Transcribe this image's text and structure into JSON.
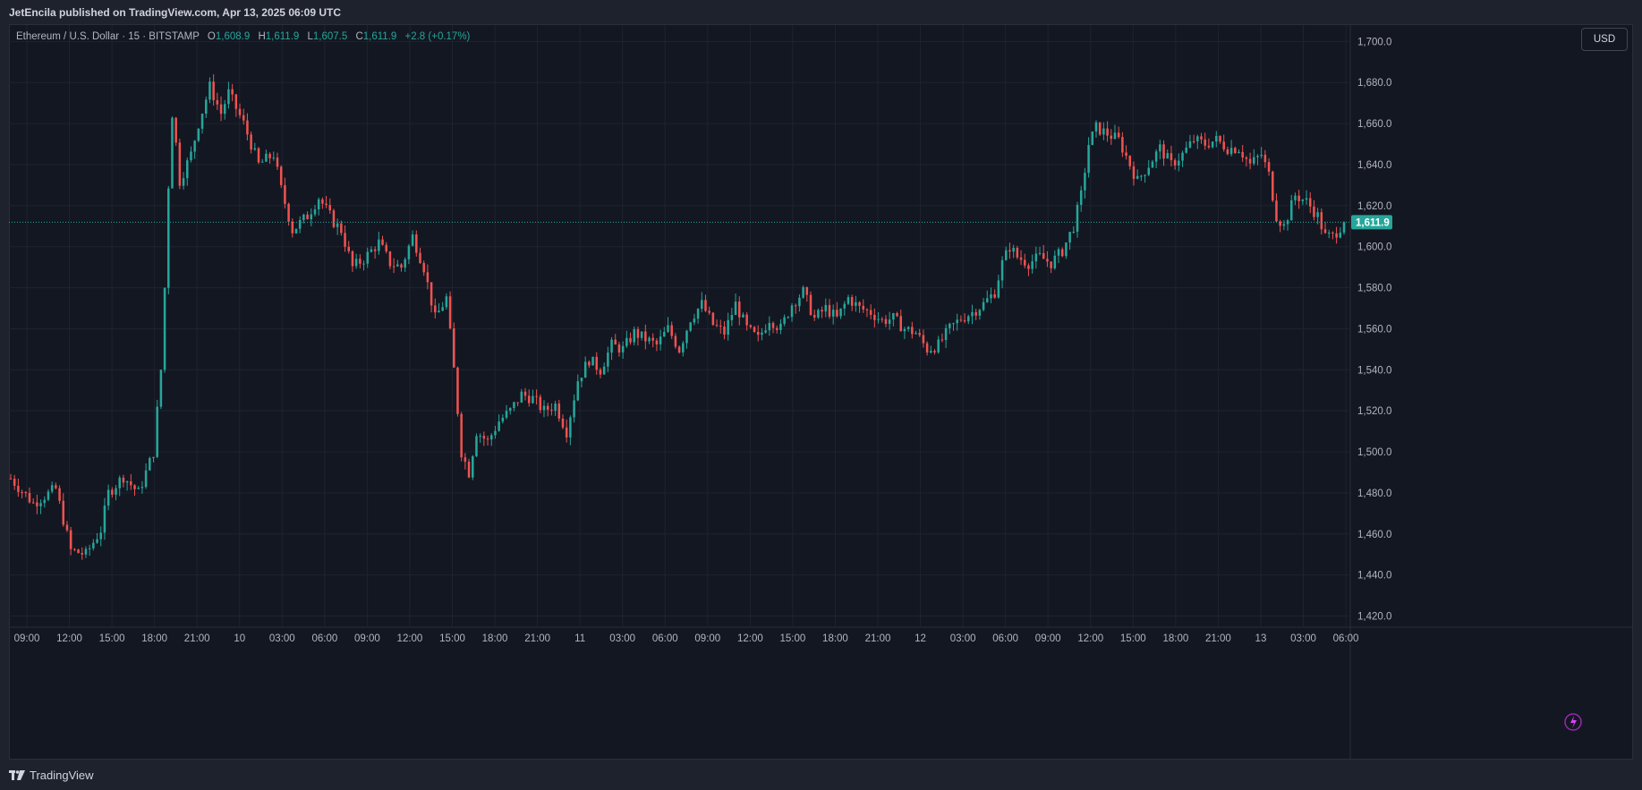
{
  "header": {
    "published_by": "JetEncila published on TradingView.com, Apr 13, 2025 06:09 UTC"
  },
  "legend": {
    "symbol": "Ethereum / U.S. Dollar · 15 · BITSTAMP",
    "o_label": "O",
    "o_value": "1,608.9",
    "h_label": "H",
    "h_value": "1,611.9",
    "l_label": "L",
    "l_value": "1,607.5",
    "c_label": "C",
    "c_value": "1,611.9",
    "change": "+2.8 (+0.17%)"
  },
  "currency_button": "USD",
  "footer": {
    "brand": "TradingView"
  },
  "colors": {
    "up": "#26a69a",
    "down": "#ef5350",
    "background": "#131722",
    "grid": "#1f2330",
    "price_line": "#26a69a"
  },
  "chart_data": {
    "type": "candlestick",
    "interval": "15",
    "ylim": [
      1415,
      1708
    ],
    "y_ticks": [
      1420,
      1440,
      1460,
      1480,
      1500,
      1520,
      1540,
      1560,
      1580,
      1600,
      1620,
      1640,
      1660,
      1680,
      1700
    ],
    "y_tick_labels": [
      "1,420.0",
      "1,440.0",
      "1,460.0",
      "1,480.0",
      "1,500.0",
      "1,520.0",
      "1,540.0",
      "1,560.0",
      "1,580.0",
      "1,600.0",
      "1,620.0",
      "1,640.0",
      "1,660.0",
      "1,680.0",
      "1,700.0"
    ],
    "x_ticks": [
      "09:00",
      "12:00",
      "15:00",
      "18:00",
      "21:00",
      "10",
      "03:00",
      "06:00",
      "09:00",
      "12:00",
      "15:00",
      "18:00",
      "21:00",
      "11",
      "03:00",
      "06:00",
      "09:00",
      "12:00",
      "15:00",
      "18:00",
      "21:00",
      "12",
      "03:00",
      "06:00",
      "09:00",
      "12:00",
      "15:00",
      "18:00",
      "21:00",
      "13",
      "03:00",
      "06:00"
    ],
    "current_price": 1611.9,
    "current_price_label": "1,611.9",
    "price_path": [
      [
        0,
        1487
      ],
      [
        6,
        1475
      ],
      [
        12,
        1482
      ],
      [
        16,
        1452
      ],
      [
        20,
        1450
      ],
      [
        24,
        1462
      ],
      [
        26,
        1480
      ],
      [
        30,
        1488
      ],
      [
        34,
        1480
      ],
      [
        38,
        1500
      ],
      [
        40,
        1540
      ],
      [
        41,
        1580
      ],
      [
        42,
        1630
      ],
      [
        43,
        1665
      ],
      [
        44,
        1650
      ],
      [
        45,
        1632
      ],
      [
        48,
        1645
      ],
      [
        50,
        1660
      ],
      [
        53,
        1678
      ],
      [
        56,
        1665
      ],
      [
        58,
        1675
      ],
      [
        62,
        1660
      ],
      [
        66,
        1640
      ],
      [
        70,
        1645
      ],
      [
        72,
        1628
      ],
      [
        75,
        1608
      ],
      [
        79,
        1615
      ],
      [
        82,
        1624
      ],
      [
        86,
        1612
      ],
      [
        88,
        1608
      ],
      [
        91,
        1590
      ],
      [
        94,
        1594
      ],
      [
        98,
        1602
      ],
      [
        101,
        1592
      ],
      [
        104,
        1590
      ],
      [
        107,
        1605
      ],
      [
        110,
        1590
      ],
      [
        113,
        1565
      ],
      [
        116,
        1575
      ],
      [
        118,
        1540
      ],
      [
        120,
        1500
      ],
      [
        122,
        1490
      ],
      [
        124,
        1510
      ],
      [
        127,
        1505
      ],
      [
        130,
        1515
      ],
      [
        133,
        1520
      ],
      [
        136,
        1528
      ],
      [
        139,
        1526
      ],
      [
        142,
        1520
      ],
      [
        145,
        1523
      ],
      [
        148,
        1510
      ],
      [
        151,
        1535
      ],
      [
        154,
        1545
      ],
      [
        157,
        1540
      ],
      [
        160,
        1552
      ],
      [
        163,
        1550
      ],
      [
        166,
        1558
      ],
      [
        169,
        1555
      ],
      [
        172,
        1552
      ],
      [
        175,
        1560
      ],
      [
        178,
        1550
      ],
      [
        181,
        1565
      ],
      [
        184,
        1572
      ],
      [
        187,
        1562
      ],
      [
        190,
        1558
      ],
      [
        193,
        1572
      ],
      [
        196,
        1560
      ],
      [
        199,
        1555
      ],
      [
        202,
        1565
      ],
      [
        205,
        1560
      ],
      [
        208,
        1572
      ],
      [
        211,
        1578
      ],
      [
        214,
        1565
      ],
      [
        217,
        1570
      ],
      [
        220,
        1565
      ],
      [
        223,
        1575
      ],
      [
        226,
        1570
      ],
      [
        229,
        1568
      ],
      [
        232,
        1564
      ],
      [
        235,
        1565
      ],
      [
        238,
        1560
      ],
      [
        241,
        1558
      ],
      [
        244,
        1550
      ],
      [
        247,
        1552
      ],
      [
        250,
        1560
      ],
      [
        253,
        1565
      ],
      [
        256,
        1568
      ],
      [
        259,
        1572
      ],
      [
        262,
        1578
      ],
      [
        264,
        1592
      ],
      [
        266,
        1600
      ],
      [
        268,
        1595
      ],
      [
        271,
        1592
      ],
      [
        274,
        1595
      ],
      [
        277,
        1592
      ],
      [
        280,
        1598
      ],
      [
        283,
        1610
      ],
      [
        285,
        1625
      ],
      [
        287,
        1650
      ],
      [
        289,
        1658
      ],
      [
        292,
        1655
      ],
      [
        295,
        1652
      ],
      [
        298,
        1640
      ],
      [
        300,
        1632
      ],
      [
        303,
        1640
      ],
      [
        306,
        1648
      ],
      [
        309,
        1640
      ],
      [
        312,
        1645
      ],
      [
        315,
        1652
      ],
      [
        318,
        1650
      ],
      [
        321,
        1652
      ],
      [
        324,
        1648
      ],
      [
        327,
        1648
      ],
      [
        330,
        1640
      ],
      [
        333,
        1645
      ],
      [
        335,
        1635
      ],
      [
        337,
        1615
      ],
      [
        339,
        1610
      ],
      [
        342,
        1625
      ],
      [
        345,
        1622
      ],
      [
        348,
        1615
      ],
      [
        350,
        1605
      ],
      [
        352,
        1605
      ],
      [
        355,
        1612
      ]
    ]
  }
}
